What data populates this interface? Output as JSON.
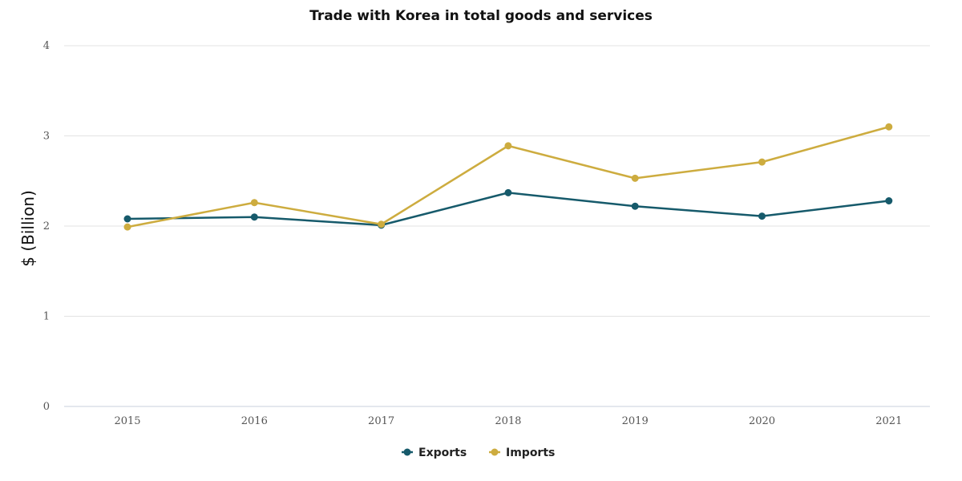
{
  "chart_data": {
    "type": "line",
    "title": "Trade with Korea in total goods and services",
    "xlabel": "",
    "ylabel": "$ (Billion)",
    "categories": [
      "2015",
      "2016",
      "2017",
      "2018",
      "2019",
      "2020",
      "2021"
    ],
    "y_ticks": [
      "0",
      "1",
      "2",
      "3",
      "4"
    ],
    "ylim": [
      0,
      4
    ],
    "grid": true,
    "legend_position": "bottom-center",
    "series": [
      {
        "name": "Exports",
        "color": "#165a6b",
        "values": [
          2.08,
          2.1,
          2.01,
          2.37,
          2.22,
          2.11,
          2.28
        ]
      },
      {
        "name": "Imports",
        "color": "#cdac3f",
        "values": [
          1.99,
          2.26,
          2.02,
          2.89,
          2.53,
          2.71,
          3.1
        ]
      }
    ]
  }
}
